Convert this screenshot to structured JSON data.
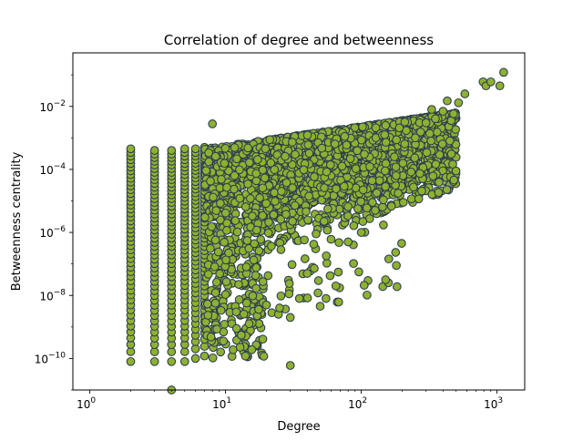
{
  "chart_data": {
    "type": "scatter",
    "title": "Correlation of degree and betweenness",
    "xlabel": "Degree",
    "ylabel": "Betweenness centrality",
    "xscale": "log",
    "yscale": "log",
    "xlim": [
      0.75,
      1600
    ],
    "ylim": [
      1e-11,
      0.5
    ],
    "grid": false,
    "marker_fill": "#8fb132",
    "marker_edge": "#2d3e4f",
    "x_ticks": [
      {
        "base": "10",
        "exp": "0",
        "value": 1
      },
      {
        "base": "10",
        "exp": "1",
        "value": 10
      },
      {
        "base": "10",
        "exp": "2",
        "value": 100
      },
      {
        "base": "10",
        "exp": "3",
        "value": 1000
      }
    ],
    "y_ticks": [
      {
        "base": "10",
        "exp": "−10",
        "value": 1e-10
      },
      {
        "base": "10",
        "exp": "−8",
        "value": 1e-08
      },
      {
        "base": "10",
        "exp": "−6",
        "value": 1e-06
      },
      {
        "base": "10",
        "exp": "−4",
        "value": 0.0001
      },
      {
        "base": "10",
        "exp": "−2",
        "value": 0.01
      }
    ],
    "vertical_bands": [
      {
        "degree": 2,
        "y_min": 8e-11,
        "y_max": 0.00045
      },
      {
        "degree": 3,
        "y_min": 8e-11,
        "y_max": 0.0004
      },
      {
        "degree": 4,
        "y_min": 8e-11,
        "y_max": 0.0004
      },
      {
        "degree": 5,
        "y_min": 8e-11,
        "y_max": 0.00045
      },
      {
        "degree": 6,
        "y_min": 1e-10,
        "y_max": 0.00045
      },
      {
        "degree": 7,
        "y_min": 1.2e-10,
        "y_max": 0.0005
      }
    ],
    "points": [
      {
        "x": 4,
        "y": 1e-11
      },
      {
        "x": 8,
        "y": 0.0028
      },
      {
        "x": 14,
        "y": 1.2e-10
      },
      {
        "x": 12,
        "y": 3e-09
      },
      {
        "x": 20,
        "y": 5e-09
      },
      {
        "x": 25,
        "y": 4e-09
      },
      {
        "x": 30,
        "y": 6e-11
      },
      {
        "x": 30,
        "y": 2e-09
      },
      {
        "x": 35,
        "y": 8e-09
      },
      {
        "x": 40,
        "y": 5e-08
      },
      {
        "x": 48,
        "y": 1.2e-08
      },
      {
        "x": 55,
        "y": 8e-09
      },
      {
        "x": 65,
        "y": 2e-08
      },
      {
        "x": 80,
        "y": 5e-07
      },
      {
        "x": 100,
        "y": 1e-06
      },
      {
        "x": 110,
        "y": 6e-06
      },
      {
        "x": 130,
        "y": 1.8e-05
      },
      {
        "x": 150,
        "y": 9e-05
      },
      {
        "x": 180,
        "y": 0.00012
      },
      {
        "x": 250,
        "y": 0.001
      },
      {
        "x": 300,
        "y": 0.003
      },
      {
        "x": 330,
        "y": 0.008
      },
      {
        "x": 400,
        "y": 0.007
      },
      {
        "x": 430,
        "y": 0.015
      },
      {
        "x": 520,
        "y": 0.013
      },
      {
        "x": 580,
        "y": 0.025
      },
      {
        "x": 790,
        "y": 0.06
      },
      {
        "x": 830,
        "y": 0.045
      },
      {
        "x": 900,
        "y": 0.06
      },
      {
        "x": 1050,
        "y": 0.045
      },
      {
        "x": 1120,
        "y": 0.12
      }
    ]
  }
}
